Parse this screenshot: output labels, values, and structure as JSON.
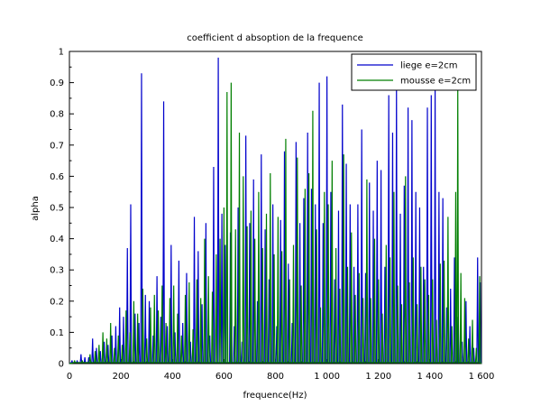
{
  "chart_data": {
    "type": "line",
    "title": "coefficient d absoption de la frequence",
    "xlabel": "frequence(Hz)",
    "ylabel": "alpha",
    "xlim": [
      0,
      1600
    ],
    "ylim": [
      0,
      1
    ],
    "x_ticks": [
      0,
      200,
      400,
      600,
      800,
      1000,
      1200,
      1400,
      1600
    ],
    "x_tick_labels": [
      "0",
      "200",
      "400",
      "600",
      "800",
      "1 000",
      "1 200",
      "1 400",
      "1 600"
    ],
    "y_ticks": [
      0,
      0.1,
      0.2,
      0.3,
      0.4,
      0.5,
      0.6,
      0.7,
      0.8,
      0.9,
      1
    ],
    "y_tick_labels": [
      "0",
      "0.1",
      "0.2",
      "0.3",
      "0.4",
      "0.5",
      "0.6",
      "0.7",
      "0.8",
      "0.9",
      "1"
    ],
    "grid": false,
    "legend_position": "top-right",
    "series": [
      {
        "name": "liege e=2cm",
        "color": "#0000cc",
        "peaks": [
          [
            10,
            0.01
          ],
          [
            30,
            0.01
          ],
          [
            45,
            0.03
          ],
          [
            60,
            0.02
          ],
          [
            75,
            0.02
          ],
          [
            90,
            0.08
          ],
          [
            105,
            0.05
          ],
          [
            120,
            0.04
          ],
          [
            135,
            0.07
          ],
          [
            150,
            0.06
          ],
          [
            165,
            0.09
          ],
          [
            180,
            0.12
          ],
          [
            195,
            0.18
          ],
          [
            210,
            0.15
          ],
          [
            225,
            0.37
          ],
          [
            238,
            0.51
          ],
          [
            255,
            0.16
          ],
          [
            270,
            0.13
          ],
          [
            280,
            0.93
          ],
          [
            295,
            0.22
          ],
          [
            310,
            0.2
          ],
          [
            325,
            0.09
          ],
          [
            340,
            0.28
          ],
          [
            355,
            0.15
          ],
          [
            366,
            0.84
          ],
          [
            380,
            0.12
          ],
          [
            395,
            0.38
          ],
          [
            410,
            0.1
          ],
          [
            425,
            0.33
          ],
          [
            440,
            0.13
          ],
          [
            455,
            0.29
          ],
          [
            470,
            0.07
          ],
          [
            485,
            0.47
          ],
          [
            500,
            0.36
          ],
          [
            515,
            0.19
          ],
          [
            530,
            0.45
          ],
          [
            545,
            0.09
          ],
          [
            560,
            0.63
          ],
          [
            578,
            0.98
          ],
          [
            592,
            0.48
          ],
          [
            605,
            0.38
          ],
          [
            625,
            0.42
          ],
          [
            640,
            0.12
          ],
          [
            655,
            0.5
          ],
          [
            670,
            0.07
          ],
          [
            685,
            0.73
          ],
          [
            700,
            0.45
          ],
          [
            715,
            0.59
          ],
          [
            730,
            0.2
          ],
          [
            745,
            0.67
          ],
          [
            760,
            0.43
          ],
          [
            775,
            0.27
          ],
          [
            790,
            0.51
          ],
          [
            805,
            0.12
          ],
          [
            820,
            0.46
          ],
          [
            835,
            0.68
          ],
          [
            850,
            0.32
          ],
          [
            865,
            0.13
          ],
          [
            880,
            0.71
          ],
          [
            895,
            0.45
          ],
          [
            910,
            0.53
          ],
          [
            925,
            0.74
          ],
          [
            940,
            0.56
          ],
          [
            955,
            0.51
          ],
          [
            970,
            0.9
          ],
          [
            985,
            0.45
          ],
          [
            1000,
            0.92
          ],
          [
            1015,
            0.55
          ],
          [
            1030,
            0.27
          ],
          [
            1045,
            0.49
          ],
          [
            1060,
            0.83
          ],
          [
            1075,
            0.64
          ],
          [
            1090,
            0.51
          ],
          [
            1105,
            0.31
          ],
          [
            1120,
            0.51
          ],
          [
            1135,
            0.75
          ],
          [
            1150,
            0.29
          ],
          [
            1165,
            0.58
          ],
          [
            1180,
            0.49
          ],
          [
            1195,
            0.65
          ],
          [
            1210,
            0.62
          ],
          [
            1225,
            0.31
          ],
          [
            1240,
            0.86
          ],
          [
            1255,
            0.74
          ],
          [
            1270,
            0.88
          ],
          [
            1285,
            0.48
          ],
          [
            1300,
            0.57
          ],
          [
            1315,
            0.82
          ],
          [
            1330,
            0.78
          ],
          [
            1345,
            0.55
          ],
          [
            1360,
            0.5
          ],
          [
            1375,
            0.31
          ],
          [
            1390,
            0.82
          ],
          [
            1405,
            0.86
          ],
          [
            1420,
            0.89
          ],
          [
            1435,
            0.55
          ],
          [
            1450,
            0.53
          ],
          [
            1465,
            0.18
          ],
          [
            1480,
            0.24
          ],
          [
            1495,
            0.34
          ],
          [
            1510,
            0.15
          ],
          [
            1525,
            0.07
          ],
          [
            1540,
            0.2
          ],
          [
            1555,
            0.12
          ],
          [
            1570,
            0.05
          ],
          [
            1585,
            0.34
          ],
          [
            1595,
            0.26
          ]
        ]
      },
      {
        "name": "mousse e=2cm",
        "color": "#007f00",
        "peaks": [
          [
            20,
            0.01
          ],
          [
            50,
            0.01
          ],
          [
            80,
            0.03
          ],
          [
            100,
            0.04
          ],
          [
            115,
            0.06
          ],
          [
            130,
            0.1
          ],
          [
            145,
            0.08
          ],
          [
            160,
            0.13
          ],
          [
            175,
            0.05
          ],
          [
            190,
            0.09
          ],
          [
            205,
            0.06
          ],
          [
            220,
            0.17
          ],
          [
            235,
            0.1
          ],
          [
            250,
            0.2
          ],
          [
            265,
            0.16
          ],
          [
            285,
            0.24
          ],
          [
            300,
            0.08
          ],
          [
            315,
            0.18
          ],
          [
            330,
            0.22
          ],
          [
            345,
            0.17
          ],
          [
            360,
            0.25
          ],
          [
            375,
            0.13
          ],
          [
            390,
            0.21
          ],
          [
            405,
            0.25
          ],
          [
            420,
            0.16
          ],
          [
            435,
            0.09
          ],
          [
            450,
            0.22
          ],
          [
            465,
            0.26
          ],
          [
            480,
            0.11
          ],
          [
            495,
            0.27
          ],
          [
            510,
            0.21
          ],
          [
            525,
            0.4
          ],
          [
            540,
            0.28
          ],
          [
            555,
            0.23
          ],
          [
            570,
            0.35
          ],
          [
            585,
            0.4
          ],
          [
            600,
            0.5
          ],
          [
            612,
            0.87
          ],
          [
            628,
            0.9
          ],
          [
            645,
            0.43
          ],
          [
            660,
            0.74
          ],
          [
            675,
            0.6
          ],
          [
            690,
            0.44
          ],
          [
            705,
            0.49
          ],
          [
            720,
            0.4
          ],
          [
            735,
            0.55
          ],
          [
            750,
            0.37
          ],
          [
            765,
            0.48
          ],
          [
            780,
            0.61
          ],
          [
            795,
            0.35
          ],
          [
            810,
            0.47
          ],
          [
            825,
            0.36
          ],
          [
            840,
            0.72
          ],
          [
            855,
            0.27
          ],
          [
            870,
            0.38
          ],
          [
            885,
            0.66
          ],
          [
            900,
            0.25
          ],
          [
            915,
            0.56
          ],
          [
            930,
            0.61
          ],
          [
            945,
            0.81
          ],
          [
            960,
            0.43
          ],
          [
            975,
            0.18
          ],
          [
            990,
            0.55
          ],
          [
            1005,
            0.51
          ],
          [
            1020,
            0.65
          ],
          [
            1035,
            0.37
          ],
          [
            1050,
            0.24
          ],
          [
            1065,
            0.67
          ],
          [
            1080,
            0.31
          ],
          [
            1095,
            0.42
          ],
          [
            1110,
            0.22
          ],
          [
            1125,
            0.29
          ],
          [
            1140,
            0.21
          ],
          [
            1155,
            0.59
          ],
          [
            1170,
            0.21
          ],
          [
            1185,
            0.4
          ],
          [
            1200,
            0.27
          ],
          [
            1215,
            0.16
          ],
          [
            1230,
            0.38
          ],
          [
            1245,
            0.34
          ],
          [
            1260,
            0.55
          ],
          [
            1275,
            0.25
          ],
          [
            1290,
            0.19
          ],
          [
            1305,
            0.6
          ],
          [
            1320,
            0.26
          ],
          [
            1335,
            0.34
          ],
          [
            1350,
            0.19
          ],
          [
            1365,
            0.31
          ],
          [
            1380,
            0.27
          ],
          [
            1395,
            0.22
          ],
          [
            1410,
            0.27
          ],
          [
            1425,
            0.14
          ],
          [
            1440,
            0.32
          ],
          [
            1455,
            0.33
          ],
          [
            1470,
            0.47
          ],
          [
            1485,
            0.12
          ],
          [
            1500,
            0.55
          ],
          [
            1508,
            0.89
          ],
          [
            1520,
            0.29
          ],
          [
            1535,
            0.21
          ],
          [
            1550,
            0.08
          ],
          [
            1565,
            0.14
          ],
          [
            1580,
            0.05
          ],
          [
            1593,
            0.28
          ]
        ]
      }
    ]
  }
}
